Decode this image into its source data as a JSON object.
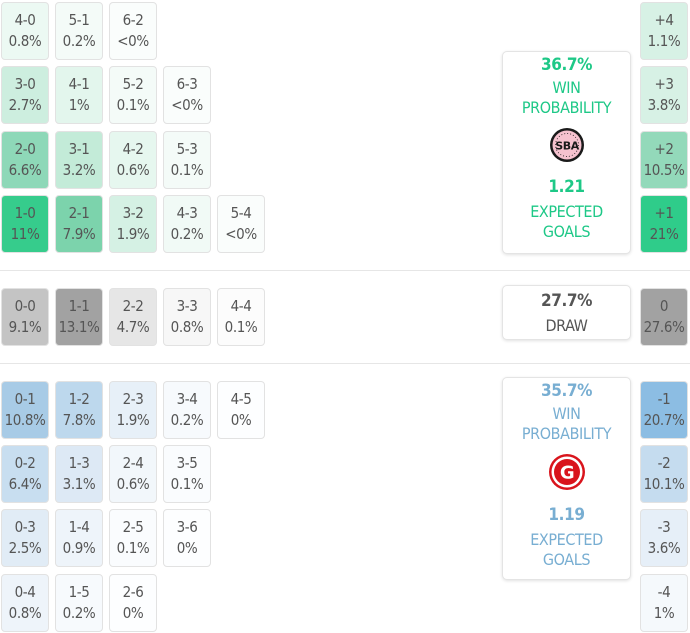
{
  "colors": {
    "home_accent": "#1ec887",
    "away_accent": "#78aed2",
    "draw_text": "#555555"
  },
  "home": {
    "rows": [
      {
        "margin_label": "+4",
        "margin_value": "1.1%",
        "cells": [
          {
            "score": "4-0",
            "prob": "0.8%",
            "bg": "#ecf9f3"
          },
          {
            "score": "5-1",
            "prob": "0.2%",
            "bg": "#f4fbf8"
          },
          {
            "score": "6-2",
            "prob": "<0%",
            "bg": "#fafdfc"
          }
        ]
      },
      {
        "margin_label": "+3",
        "margin_value": "3.8%",
        "cells": [
          {
            "score": "3-0",
            "prob": "2.7%",
            "bg": "#cdeedf"
          },
          {
            "score": "4-1",
            "prob": "1%",
            "bg": "#e3f6ed"
          },
          {
            "score": "5-2",
            "prob": "0.1%",
            "bg": "#f4fbf8"
          },
          {
            "score": "6-3",
            "prob": "<0%",
            "bg": "#fafdfc"
          }
        ]
      },
      {
        "margin_label": "+2",
        "margin_value": "10.5%",
        "cells": [
          {
            "score": "2-0",
            "prob": "6.6%",
            "bg": "#8ed8b8"
          },
          {
            "score": "3-1",
            "prob": "3.2%",
            "bg": "#c3ebd8"
          },
          {
            "score": "4-2",
            "prob": "0.6%",
            "bg": "#e6f7ef"
          },
          {
            "score": "5-3",
            "prob": "0.1%",
            "bg": "#f4fbf8"
          }
        ]
      },
      {
        "margin_label": "+1",
        "margin_value": "21%",
        "cells": [
          {
            "score": "1-0",
            "prob": "11%",
            "bg": "#36cc8c"
          },
          {
            "score": "2-1",
            "prob": "7.9%",
            "bg": "#7cd3ac"
          },
          {
            "score": "3-2",
            "prob": "1.9%",
            "bg": "#d5f1e4"
          },
          {
            "score": "4-3",
            "prob": "0.2%",
            "bg": "#f1faf6"
          },
          {
            "score": "5-4",
            "prob": "<0%",
            "bg": "#fafdfc"
          }
        ]
      }
    ],
    "card": {
      "percent": "36.7%",
      "label_1": "WIN",
      "label_2": "PROBABILITY",
      "xg": "1.21",
      "xg_label_1": "EXPECTED",
      "xg_label_2": "GOALS",
      "logo_text": "SBA"
    }
  },
  "draw": {
    "cells": [
      {
        "score": "0-0",
        "prob": "9.1%",
        "bg": "#c4c4c4"
      },
      {
        "score": "1-1",
        "prob": "13.1%",
        "bg": "#a2a2a2"
      },
      {
        "score": "2-2",
        "prob": "4.7%",
        "bg": "#e6e6e6"
      },
      {
        "score": "3-3",
        "prob": "0.8%",
        "bg": "#f7f7f7"
      },
      {
        "score": "4-4",
        "prob": "0.1%",
        "bg": "#fcfcfc"
      }
    ],
    "margin_label": "0",
    "margin_value": "27.6%",
    "card": {
      "percent": "27.7%",
      "label": "DRAW"
    }
  },
  "away": {
    "rows": [
      {
        "margin_label": "-1",
        "margin_value": "20.7%",
        "cells": [
          {
            "score": "0-1",
            "prob": "10.8%",
            "bg": "#a8cbe6"
          },
          {
            "score": "1-2",
            "prob": "7.8%",
            "bg": "#bdd8ed"
          },
          {
            "score": "2-3",
            "prob": "1.9%",
            "bg": "#e7f0f8"
          },
          {
            "score": "3-4",
            "prob": "0.2%",
            "bg": "#f7fafd"
          },
          {
            "score": "4-5",
            "prob": "0%",
            "bg": "#fdfeff"
          }
        ]
      },
      {
        "margin_label": "-2",
        "margin_value": "10.1%",
        "cells": [
          {
            "score": "0-2",
            "prob": "6.4%",
            "bg": "#c8def0"
          },
          {
            "score": "1-3",
            "prob": "3.1%",
            "bg": "#dde9f5"
          },
          {
            "score": "2-4",
            "prob": "0.6%",
            "bg": "#f2f7fb"
          },
          {
            "score": "3-5",
            "prob": "0.1%",
            "bg": "#fafcfe"
          }
        ]
      },
      {
        "margin_label": "-3",
        "margin_value": "3.6%",
        "cells": [
          {
            "score": "0-3",
            "prob": "2.5%",
            "bg": "#e1ecf6"
          },
          {
            "score": "1-4",
            "prob": "0.9%",
            "bg": "#eef4fa"
          },
          {
            "score": "2-5",
            "prob": "0.1%",
            "bg": "#fafcfe"
          },
          {
            "score": "3-6",
            "prob": "0%",
            "bg": "#fdfeff"
          }
        ]
      },
      {
        "margin_label": "-4",
        "margin_value": "1%",
        "cells": [
          {
            "score": "0-4",
            "prob": "0.8%",
            "bg": "#eef4fa"
          },
          {
            "score": "1-5",
            "prob": "0.2%",
            "bg": "#f7fafd"
          },
          {
            "score": "2-6",
            "prob": "0%",
            "bg": "#fdfeff"
          }
        ]
      }
    ],
    "card": {
      "percent": "35.7%",
      "label_1": "WIN",
      "label_2": "PROBABILITY",
      "xg": "1.19",
      "xg_label_1": "EXPECTED",
      "xg_label_2": "GOALS",
      "logo_text": "G"
    }
  }
}
